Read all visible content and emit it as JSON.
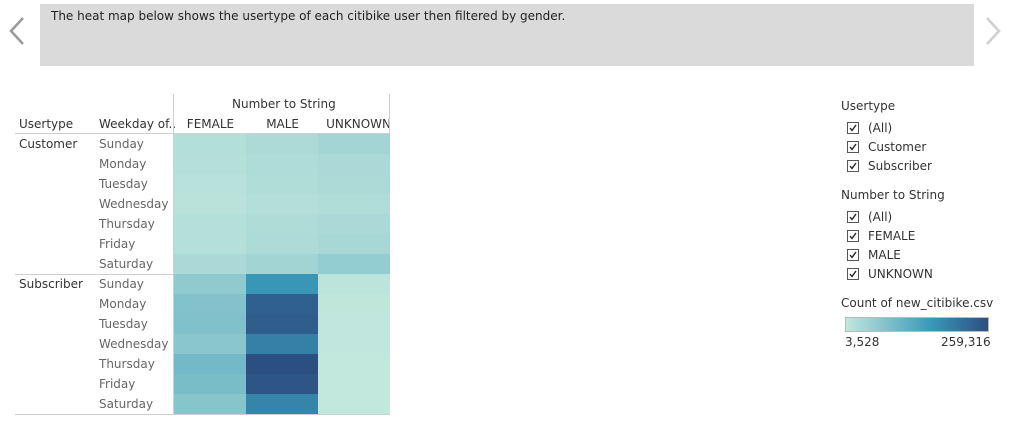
{
  "caption": "The heat map below shows the usertype of each citibike user then filtered by gender.",
  "nav": {
    "prev_icon": "chevron-left-icon",
    "next_icon": "chevron-right-icon"
  },
  "chart_data": {
    "type": "heatmap",
    "column_group_label": "Number to String",
    "row_headers": [
      "Usertype",
      "Weekday of.."
    ],
    "columns": [
      "FEMALE",
      "MALE",
      "UNKNOWN"
    ],
    "rows": [
      {
        "usertype": "Customer",
        "weekday": "Sunday",
        "values": [
          20000,
          28000,
          38000
        ]
      },
      {
        "usertype": "",
        "weekday": "Monday",
        "values": [
          18000,
          25000,
          30000
        ]
      },
      {
        "usertype": "",
        "weekday": "Tuesday",
        "values": [
          16000,
          23000,
          28000
        ]
      },
      {
        "usertype": "",
        "weekday": "Wednesday",
        "values": [
          13000,
          19000,
          23000
        ]
      },
      {
        "usertype": "",
        "weekday": "Thursday",
        "values": [
          18000,
          24000,
          30000
        ]
      },
      {
        "usertype": "",
        "weekday": "Friday",
        "values": [
          18000,
          27000,
          33000
        ]
      },
      {
        "usertype": "Subscriber",
        "weekday": "Saturday",
        "values": [
          30000,
          40000,
          55000
        ]
      },
      {
        "usertype": "",
        "weekday": "Sunday",
        "values": [
          60000,
          160000,
          10000
        ]
      },
      {
        "usertype": "",
        "weekday": "Monday",
        "values": [
          75000,
          235000,
          6000
        ]
      },
      {
        "usertype": "",
        "weekday": "Tuesday",
        "values": [
          78000,
          240000,
          5000
        ]
      },
      {
        "usertype": "",
        "weekday": "Wednesday",
        "values": [
          68000,
          190000,
          4500
        ]
      },
      {
        "usertype": "",
        "weekday": "Thursday",
        "values": [
          92000,
          259316,
          4000
        ]
      },
      {
        "usertype": "",
        "weekday": "Friday",
        "values": [
          86000,
          250000,
          4000
        ]
      },
      {
        "usertype": "",
        "weekday": "Saturday",
        "values": [
          70000,
          185000,
          3528
        ]
      }
    ],
    "color_min": 3528,
    "color_max": 259316,
    "color_low": "#c2e7dd",
    "color_high": "#2c4f82"
  },
  "filters": {
    "usertype": {
      "title": "Usertype",
      "options": [
        "(All)",
        "Customer",
        "Subscriber"
      ]
    },
    "number_to_string": {
      "title": "Number to String",
      "options": [
        "(All)",
        "FEMALE",
        "MALE",
        "UNKNOWN"
      ]
    }
  },
  "legend": {
    "title": "Count of new_citibike.csv",
    "min_label": "3,528",
    "max_label": "259,316"
  }
}
